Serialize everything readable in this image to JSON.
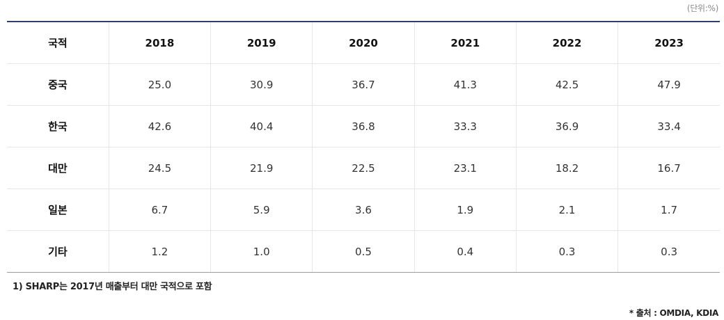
{
  "unit_label": "(단위:%)",
  "table": {
    "headers": [
      "국적",
      "2018",
      "2019",
      "2020",
      "2021",
      "2022",
      "2023"
    ],
    "rows": [
      {
        "country": "중국",
        "values": [
          "25.0",
          "30.9",
          "36.7",
          "41.3",
          "42.5",
          "47.9"
        ]
      },
      {
        "country": "한국",
        "values": [
          "42.6",
          "40.4",
          "36.8",
          "33.3",
          "36.9",
          "33.4"
        ]
      },
      {
        "country": "대만",
        "values": [
          "24.5",
          "21.9",
          "22.5",
          "23.1",
          "18.2",
          "16.7"
        ]
      },
      {
        "country": "일본",
        "values": [
          "6.7",
          "5.9",
          "3.6",
          "1.9",
          "2.1",
          "1.7"
        ]
      },
      {
        "country": "기타",
        "values": [
          "1.2",
          "1.0",
          "0.5",
          "0.4",
          "0.3",
          "0.3"
        ]
      }
    ]
  },
  "footnote": "1) SHARP는 2017년 매출부터 대만 국적으로 포함",
  "source": "* 출처 : OMDIA, KDIA"
}
